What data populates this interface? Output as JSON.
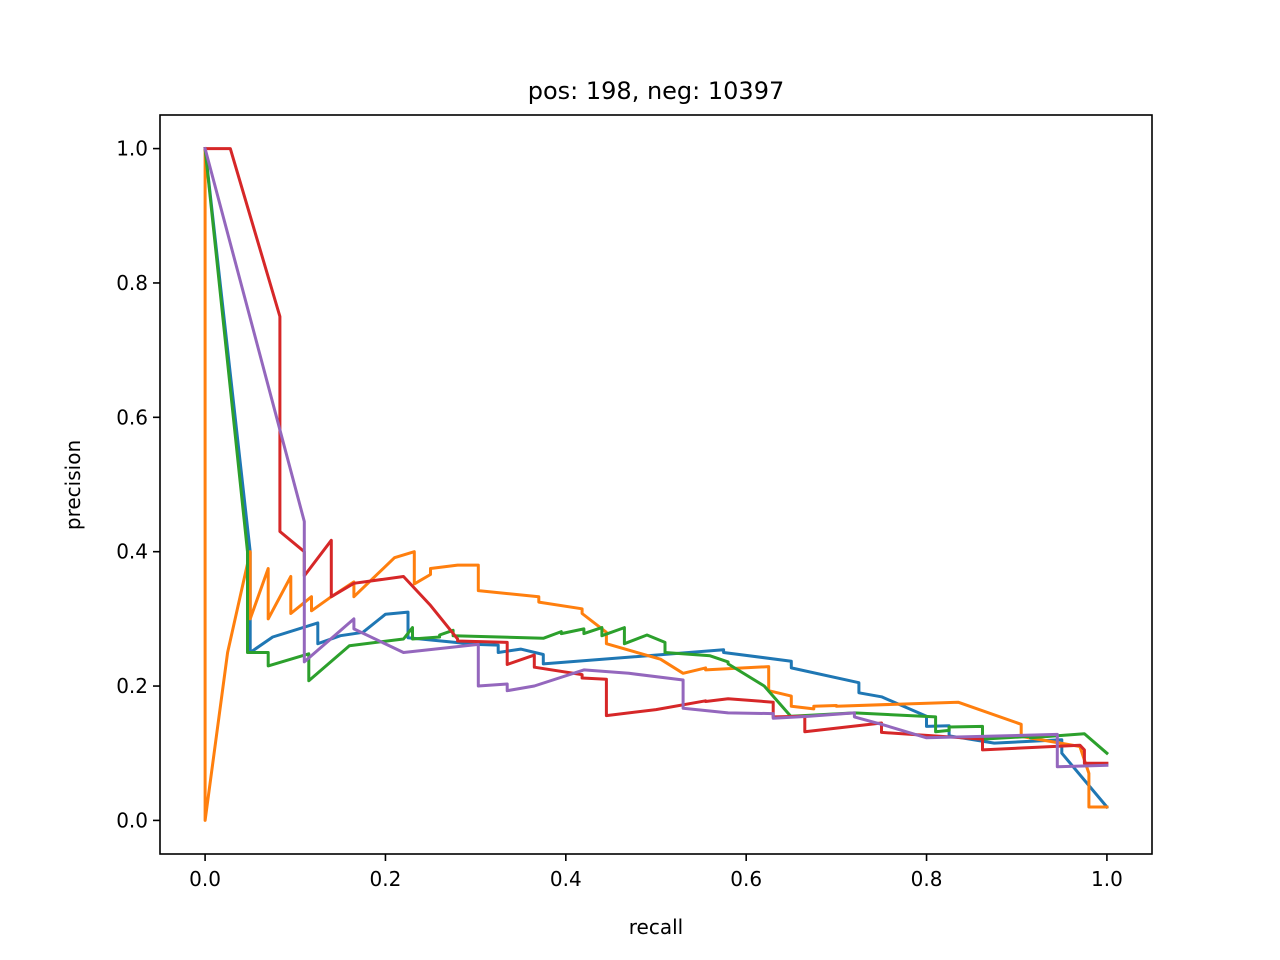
{
  "chart_data": {
    "type": "line",
    "title": "pos: 198, neg: 10397",
    "xlabel": "recall",
    "ylabel": "precision",
    "xlim": [
      -0.05,
      1.05
    ],
    "ylim": [
      -0.05,
      1.05
    ],
    "xticks": [
      0.0,
      0.2,
      0.4,
      0.6,
      0.8,
      1.0
    ],
    "yticks": [
      0.0,
      0.2,
      0.4,
      0.6,
      0.8,
      1.0
    ],
    "xtick_labels": [
      "0.0",
      "0.2",
      "0.4",
      "0.6",
      "0.8",
      "1.0"
    ],
    "ytick_labels": [
      "0.0",
      "0.2",
      "0.4",
      "0.6",
      "0.8",
      "1.0"
    ],
    "grid": false,
    "legend": "none",
    "series": [
      {
        "color": "#1f77b4",
        "x": [
          0.0,
          0.05,
          0.05,
          0.075,
          0.125,
          0.125,
          0.15,
          0.175,
          0.2,
          0.225,
          0.225,
          0.3,
          0.325,
          0.325,
          0.35,
          0.375,
          0.375,
          0.575,
          0.575,
          0.65,
          0.65,
          0.725,
          0.725,
          0.75,
          0.8,
          0.8,
          0.825,
          0.825,
          0.875,
          0.95,
          0.95,
          1.0
        ],
        "y": [
          1.0,
          0.4,
          0.25,
          0.273,
          0.294,
          0.263,
          0.275,
          0.28,
          0.307,
          0.31,
          0.272,
          0.262,
          0.261,
          0.25,
          0.255,
          0.247,
          0.233,
          0.254,
          0.25,
          0.237,
          0.227,
          0.205,
          0.19,
          0.184,
          0.155,
          0.14,
          0.141,
          0.126,
          0.115,
          0.12,
          0.1,
          0.02
        ]
      },
      {
        "color": "#ff7f0e",
        "x": [
          0.0,
          0.0,
          0.025,
          0.05,
          0.05,
          0.07,
          0.07,
          0.095,
          0.095,
          0.118,
          0.118,
          0.14,
          0.165,
          0.165,
          0.21,
          0.232,
          0.232,
          0.25,
          0.25,
          0.28,
          0.303,
          0.303,
          0.37,
          0.37,
          0.418,
          0.418,
          0.445,
          0.445,
          0.505,
          0.53,
          0.555,
          0.555,
          0.625,
          0.625,
          0.65,
          0.65,
          0.675,
          0.675,
          0.7,
          0.7,
          0.835,
          0.905,
          0.905,
          0.97,
          0.98,
          0.98,
          1.0
        ],
        "y": [
          1.0,
          0.0,
          0.25,
          0.4,
          0.3,
          0.375,
          0.3,
          0.363,
          0.308,
          0.333,
          0.312,
          0.333,
          0.355,
          0.333,
          0.391,
          0.4,
          0.352,
          0.366,
          0.375,
          0.38,
          0.38,
          0.342,
          0.333,
          0.325,
          0.315,
          0.308,
          0.28,
          0.263,
          0.24,
          0.219,
          0.227,
          0.224,
          0.229,
          0.193,
          0.185,
          0.17,
          0.166,
          0.17,
          0.171,
          0.17,
          0.176,
          0.143,
          0.125,
          0.11,
          0.07,
          0.02,
          0.02
        ]
      },
      {
        "color": "#2ca02c",
        "x": [
          0.0,
          0.047,
          0.047,
          0.07,
          0.07,
          0.115,
          0.115,
          0.16,
          0.22,
          0.23,
          0.23,
          0.26,
          0.26,
          0.275,
          0.275,
          0.375,
          0.395,
          0.395,
          0.42,
          0.42,
          0.44,
          0.44,
          0.465,
          0.465,
          0.49,
          0.51,
          0.51,
          0.56,
          0.58,
          0.58,
          0.62,
          0.65,
          0.65,
          0.72,
          0.81,
          0.81,
          0.825,
          0.825,
          0.862,
          0.862,
          0.915,
          0.915,
          0.975,
          1.0
        ],
        "y": [
          1.0,
          0.4,
          0.25,
          0.25,
          0.23,
          0.248,
          0.208,
          0.26,
          0.27,
          0.287,
          0.27,
          0.273,
          0.276,
          0.283,
          0.275,
          0.271,
          0.281,
          0.278,
          0.285,
          0.278,
          0.287,
          0.275,
          0.287,
          0.263,
          0.276,
          0.265,
          0.25,
          0.245,
          0.236,
          0.233,
          0.2,
          0.154,
          0.155,
          0.16,
          0.154,
          0.132,
          0.134,
          0.139,
          0.14,
          0.121,
          0.125,
          0.123,
          0.129,
          0.1
        ]
      },
      {
        "color": "#d62728",
        "x": [
          0.0,
          0.003,
          0.028,
          0.083,
          0.083,
          0.11,
          0.11,
          0.14,
          0.14,
          0.165,
          0.22,
          0.25,
          0.28,
          0.28,
          0.335,
          0.335,
          0.365,
          0.365,
          0.418,
          0.418,
          0.445,
          0.445,
          0.5,
          0.555,
          0.555,
          0.58,
          0.63,
          0.63,
          0.665,
          0.665,
          0.75,
          0.75,
          0.862,
          0.862,
          0.97,
          0.975,
          0.975,
          1.0
        ],
        "y": [
          1.0,
          1.0,
          1.0,
          0.75,
          0.43,
          0.4,
          0.364,
          0.417,
          0.333,
          0.353,
          0.363,
          0.32,
          0.27,
          0.267,
          0.265,
          0.232,
          0.246,
          0.228,
          0.217,
          0.212,
          0.21,
          0.156,
          0.165,
          0.178,
          0.177,
          0.181,
          0.176,
          0.154,
          0.155,
          0.132,
          0.145,
          0.131,
          0.121,
          0.105,
          0.112,
          0.105,
          0.085,
          0.085
        ]
      },
      {
        "color": "#9467bd",
        "x": [
          0.0,
          0.11,
          0.11,
          0.165,
          0.165,
          0.22,
          0.303,
          0.303,
          0.335,
          0.335,
          0.365,
          0.42,
          0.47,
          0.53,
          0.53,
          0.58,
          0.63,
          0.63,
          0.67,
          0.72,
          0.72,
          0.75,
          0.8,
          0.945,
          0.945,
          1.0
        ],
        "y": [
          1.0,
          0.445,
          0.236,
          0.3,
          0.285,
          0.25,
          0.262,
          0.2,
          0.203,
          0.193,
          0.2,
          0.224,
          0.219,
          0.209,
          0.167,
          0.16,
          0.159,
          0.152,
          0.155,
          0.16,
          0.154,
          0.143,
          0.123,
          0.128,
          0.08,
          0.082
        ]
      }
    ]
  }
}
